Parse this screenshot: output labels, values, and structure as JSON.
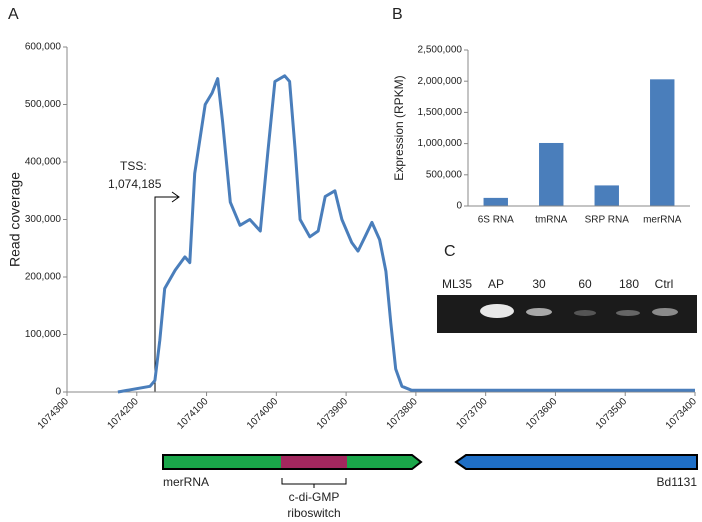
{
  "chart_data": [
    {
      "type": "line",
      "y_label": "Read coverage",
      "color": "#4a7ebb",
      "annotation": [
        "TSS:",
        "1,074,185"
      ],
      "x": [
        1074227,
        1074181,
        1074174,
        1074167,
        1074160,
        1074145,
        1074131,
        1074124,
        1074117,
        1074102,
        1074092,
        1074084,
        1074077,
        1074066,
        1074052,
        1074038,
        1074023,
        1074012,
        1074002,
        1073988,
        1073981,
        1073973,
        1073966,
        1073952,
        1073940,
        1073930,
        1073916,
        1073906,
        1073892,
        1073883,
        1073873,
        1073863,
        1073852,
        1073843,
        1073836,
        1073829,
        1073820,
        1073806,
        1073400
      ],
      "values": [
        0,
        10000,
        20000,
        90000,
        180000,
        212000,
        235000,
        225000,
        380000,
        500000,
        520000,
        545000,
        470000,
        330000,
        290000,
        300000,
        280000,
        420000,
        540000,
        550000,
        540000,
        420000,
        300000,
        270000,
        280000,
        340000,
        350000,
        300000,
        260000,
        245000,
        270000,
        295000,
        265000,
        210000,
        120000,
        40000,
        10000,
        3000,
        3000
      ],
      "xlim": [
        1074300,
        1073400
      ],
      "xticks": [
        1074300,
        1074200,
        1074100,
        1074000,
        1073900,
        1073800,
        1073700,
        1073600,
        1073500,
        1073400
      ],
      "ylim": [
        0,
        600000
      ],
      "yticks": [
        {
          "value": 0,
          "label": "0"
        },
        {
          "value": 100000,
          "label": "100,000"
        },
        {
          "value": 200000,
          "label": "200,000"
        },
        {
          "value": 300000,
          "label": "300,000"
        },
        {
          "value": 400000,
          "label": "400,000"
        },
        {
          "value": 500000,
          "label": "500,000"
        },
        {
          "value": 600000,
          "label": "600,000"
        }
      ]
    },
    {
      "type": "bar",
      "y_label": "Expression (RPKM)",
      "color": "#4a7ebb",
      "categories": [
        "6S RNA",
        "tmRNA",
        "SRP RNA",
        "merRNA"
      ],
      "values": [
        130000,
        1010000,
        330000,
        2030000
      ],
      "ylim": [
        0,
        2500000
      ],
      "yticks": [
        {
          "value": 0,
          "label": "0"
        },
        {
          "value": 500000,
          "label": "500,000"
        },
        {
          "value": 1000000,
          "label": "1,000,000"
        },
        {
          "value": 1500000,
          "label": "1,500,000"
        },
        {
          "value": 2000000,
          "label": "2,000,000"
        },
        {
          "value": 2500000,
          "label": "2,500,000"
        }
      ]
    }
  ],
  "panel_labels": [
    "A",
    "B",
    "C"
  ],
  "gene_map": {
    "left_gene": "merRNA",
    "right_gene": "Bd1131",
    "feature": [
      "c-di-GMP",
      "riboswitch"
    ]
  },
  "gel": {
    "lanes": [
      "ML35",
      "AP",
      "30",
      "60",
      "180",
      "Ctrl"
    ]
  }
}
